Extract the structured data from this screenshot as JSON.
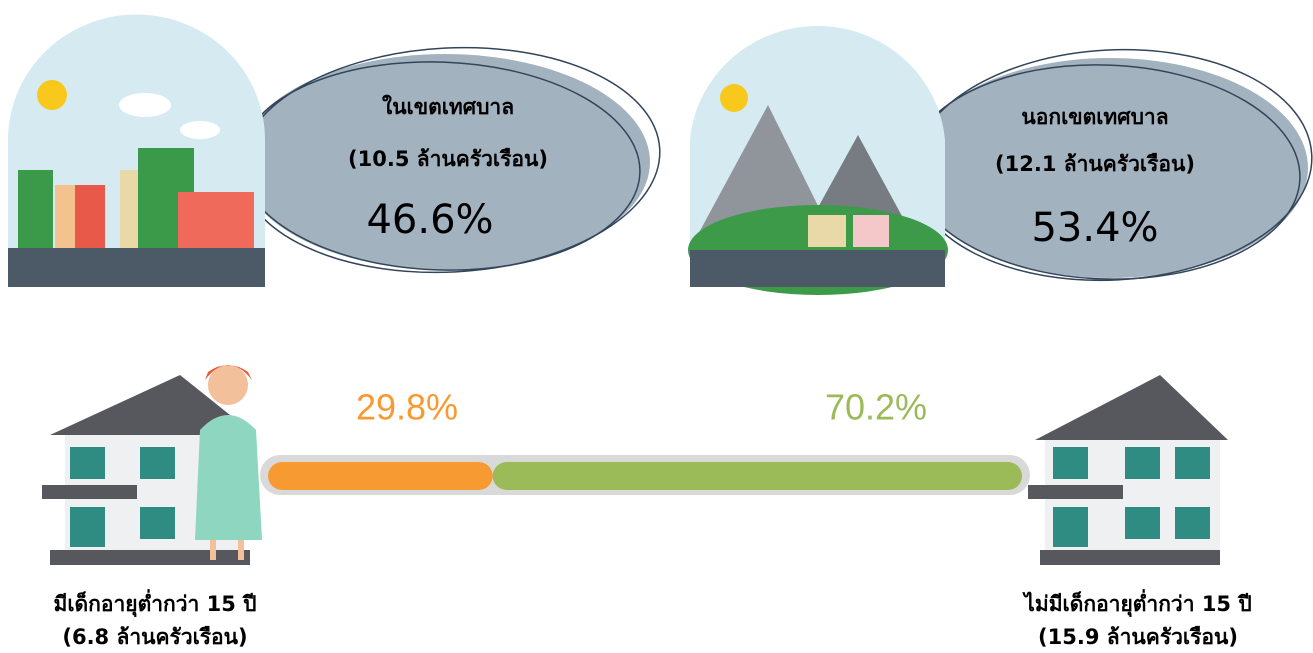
{
  "urban": {
    "title": "ในเขตเทศบาล",
    "households": "(10.5 ล้านครัวเรือน)",
    "share": "46.6%"
  },
  "rural": {
    "title": "นอกเขตเทศบาล",
    "households": "(12.1 ล้านครัวเรือน)",
    "share": "53.4%"
  },
  "children": {
    "with_child": {
      "label": "มีเด็กอายุต่ำกว่า 15 ปี",
      "households": "(6.8 ล้านครัวเรือน)"
    },
    "without_child": {
      "label": "ไม่มีเด็กอายุต่ำกว่า 15 ปี",
      "households": "(15.9 ล้านครัวเรือน)"
    },
    "segments": [
      {
        "value": 29.8,
        "label": "29.8%",
        "color": "#f79a31"
      },
      {
        "value": 70.2,
        "label": "70.2%",
        "color": "#9bbb59"
      }
    ]
  }
}
